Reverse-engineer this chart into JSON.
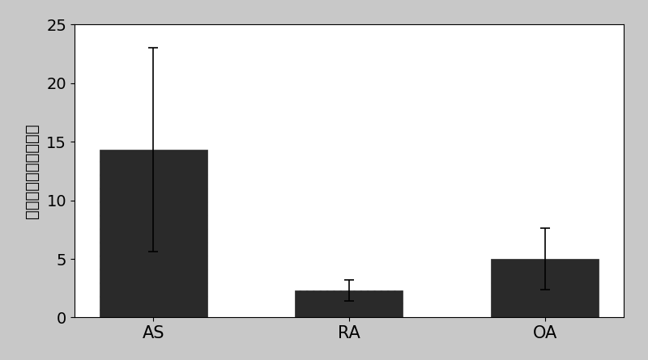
{
  "categories": [
    "AS",
    "RA",
    "OA"
  ],
  "values": [
    14.3,
    2.3,
    5.0
  ],
  "errors_upper": [
    8.7,
    0.9,
    2.6
  ],
  "errors_lower": [
    8.7,
    0.9,
    2.6
  ],
  "bar_color": "#2a2a2a",
  "bar_width": 0.55,
  "ylim": [
    0,
    25
  ],
  "yticks": [
    0,
    5,
    10,
    15,
    20,
    25
  ],
  "ylabel": "碳酸酐酶１水平（倍）",
  "tick_fontsize": 14,
  "xlabel_fontsize": 15,
  "ylabel_fontsize": 14,
  "capsize": 4,
  "plot_bg": "#ffffff",
  "figure_bg": "#c8c8c8",
  "border_color": "#aaaaaa"
}
